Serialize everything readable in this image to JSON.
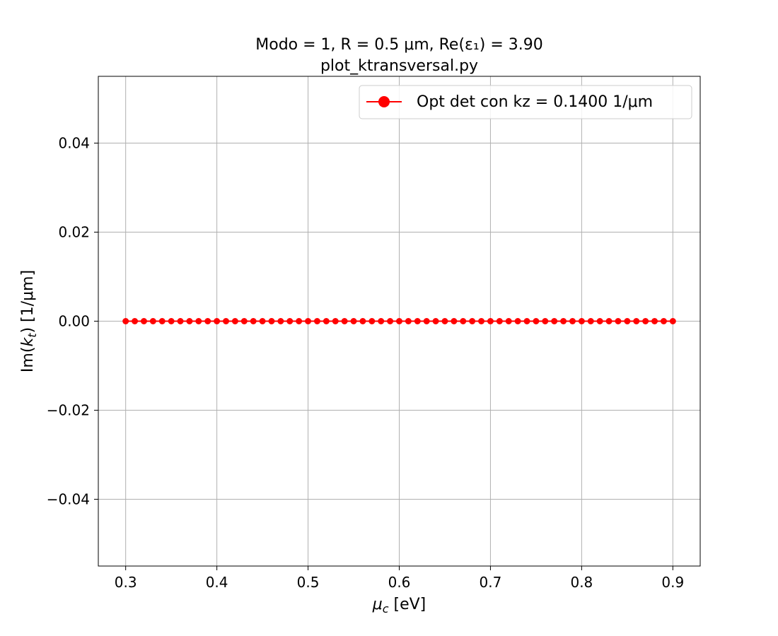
{
  "chart_data": {
    "type": "line",
    "title_line1": "Modo = 1, R = 0.5 μm, Re(ε₁) = 3.90",
    "title_line2": "plot_ktransversal.py",
    "xlabel": "μc [eV]",
    "ylabel": "Im(kt) [1/μm]",
    "xlim": [
      0.27,
      0.93
    ],
    "ylim": [
      -0.055,
      0.055
    ],
    "x_ticks": [
      0.3,
      0.4,
      0.5,
      0.6,
      0.7,
      0.8,
      0.9
    ],
    "x_tick_labels": [
      "0.3",
      "0.4",
      "0.5",
      "0.6",
      "0.7",
      "0.8",
      "0.9"
    ],
    "y_ticks": [
      0.04,
      0.02,
      0.0,
      -0.02,
      -0.04
    ],
    "y_tick_labels": [
      "0.04",
      "0.02",
      "0.00",
      "−0.02",
      "−0.04"
    ],
    "grid": true,
    "legend_position": "top-right",
    "series": [
      {
        "name": "Opt det con kz = 0.1400 1/μm",
        "color": "#ff0000",
        "marker": "circle",
        "x_start": 0.3,
        "x_end": 0.9,
        "num_points": 61,
        "y_value": 0.0
      }
    ]
  }
}
